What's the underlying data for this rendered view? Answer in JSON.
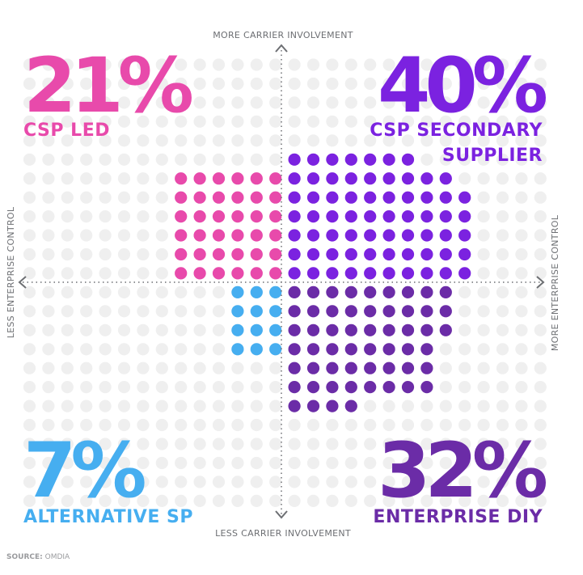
{
  "chart_data": {
    "type": "quadrant-dot-matrix",
    "axes": {
      "top": "MORE CARRIER INVOLVEMENT",
      "bottom": "LESS CARRIER INVOLVEMENT",
      "left": "LESS ENTERPRISE CONTROL",
      "right": "MORE ENTERPRISE CONTROL"
    },
    "quadrants": [
      {
        "id": "csp-led",
        "percent": "21%",
        "lines": [
          "CSP LED"
        ],
        "value": 21,
        "color": "#e84aab",
        "position": "top-left"
      },
      {
        "id": "csp-secondary",
        "percent": "40%",
        "lines": [
          "CSP SECONDARY",
          "SUPPLIER"
        ],
        "value": 40,
        "color": "#7b22e0",
        "position": "top-right"
      },
      {
        "id": "alternative-sp",
        "percent": "7%",
        "lines": [
          "ALTERNATIVE SP"
        ],
        "value": 7,
        "color": "#46aef0",
        "position": "bottom-left"
      },
      {
        "id": "enterprise-diy",
        "percent": "32%",
        "lines": [
          "ENTERPRISE DIY"
        ],
        "value": 32,
        "color": "#6b2ca7",
        "position": "bottom-right"
      }
    ]
  },
  "source": {
    "label": "SOURCE:",
    "value": "OMDIA"
  },
  "colors": {
    "grid_dot": "#efefef",
    "axis": "#6d6f73"
  }
}
